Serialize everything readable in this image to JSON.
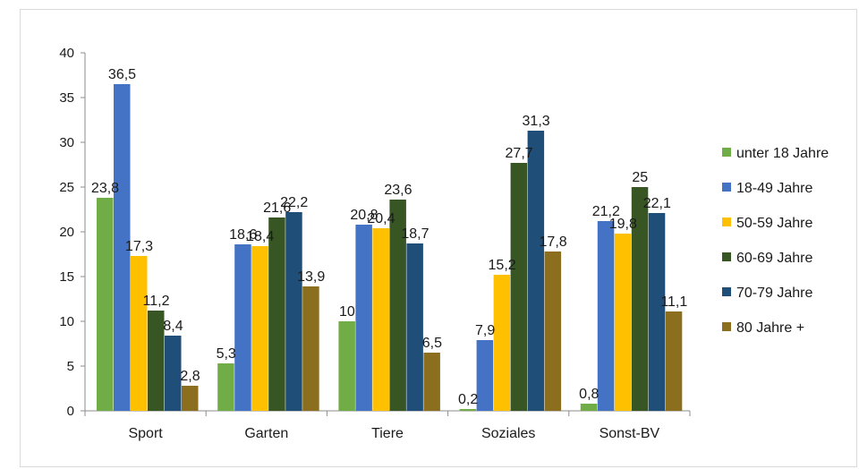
{
  "chart_data": {
    "type": "bar",
    "categories": [
      "Sport",
      "Garten",
      "Tiere",
      "Soziales",
      "Sonst-BV"
    ],
    "series": [
      {
        "name": "unter 18 Jahre",
        "color": "#70ad47",
        "values": [
          23.8,
          5.3,
          10,
          0.2,
          0.8
        ],
        "labels": [
          "23,8",
          "5,3",
          "10",
          "0,2",
          "0,8"
        ]
      },
      {
        "name": "18-49 Jahre",
        "color": "#4472c4",
        "values": [
          36.5,
          18.6,
          20.8,
          7.9,
          21.2
        ],
        "labels": [
          "36,5",
          "18,6",
          "20,8",
          "7,9",
          "21,2"
        ]
      },
      {
        "name": "50-59 Jahre",
        "color": "#ffc000",
        "values": [
          17.3,
          18.4,
          20.4,
          15.2,
          19.8
        ],
        "labels": [
          "17,3",
          "18,4",
          "20,4",
          "15,2",
          "19,8"
        ]
      },
      {
        "name": "60-69 Jahre",
        "color": "#375623",
        "values": [
          11.2,
          21.6,
          23.6,
          27.7,
          25
        ],
        "labels": [
          "11,2",
          "21,6",
          "23,6",
          "27,7",
          "25"
        ]
      },
      {
        "name": "70-79 Jahre",
        "color": "#1f4e79",
        "values": [
          8.4,
          22.2,
          18.7,
          31.3,
          22.1
        ],
        "labels": [
          "8,4",
          "22,2",
          "18,7",
          "31,3",
          "22,1"
        ]
      },
      {
        "name": "80 Jahre +",
        "color": "#8b6f1e",
        "values": [
          2.8,
          13.9,
          6.5,
          17.8,
          11.1
        ],
        "labels": [
          "2,8",
          "13,9",
          "6,5",
          "17,8",
          "11,1"
        ]
      }
    ],
    "yticks": [
      "0",
      "5",
      "10",
      "15",
      "20",
      "25",
      "30",
      "35",
      "40"
    ],
    "ylim": [
      0,
      40
    ],
    "grid": false,
    "legend_position": "right"
  }
}
